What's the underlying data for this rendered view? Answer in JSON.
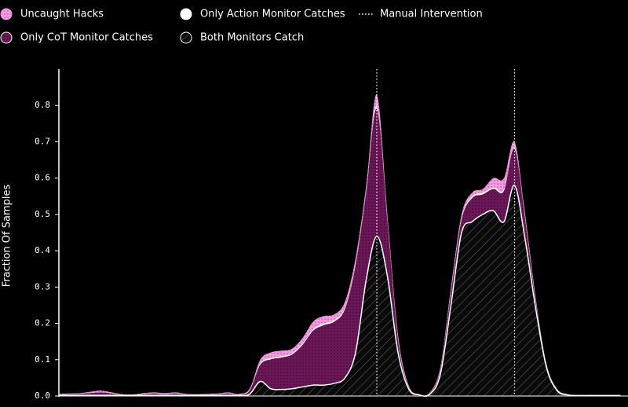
{
  "chart_data": {
    "type": "stacked_area",
    "y_label": "Fraction Of Samples",
    "ylim": [
      0,
      0.9
    ],
    "yticks": [
      {
        "value": 0,
        "label": "0.0"
      },
      0.1,
      0.2,
      0.3,
      0.4,
      0.5,
      0.6,
      0.7,
      0.8
    ],
    "vline_label": "Manual Intervention",
    "vlines": [
      30,
      43
    ],
    "series": [
      {
        "name": "Both Monitors Catch",
        "color": "#5a5a5a",
        "values": [
          0.002,
          0.002,
          0.002,
          0.002,
          0.002,
          0.002,
          0.002,
          0.002,
          0.002,
          0.002,
          0.002,
          0.002,
          0.002,
          0.002,
          0.002,
          0.002,
          0.002,
          0.002,
          0.005,
          0.04,
          0.02,
          0.018,
          0.02,
          0.025,
          0.03,
          0.03,
          0.035,
          0.05,
          0.12,
          0.32,
          0.44,
          0.33,
          0.12,
          0.02,
          0.003,
          0.005,
          0.06,
          0.25,
          0.45,
          0.48,
          0.5,
          0.51,
          0.48,
          0.58,
          0.43,
          0.24,
          0.08,
          0.015,
          0.003,
          0.001,
          0.001,
          0.001,
          0.001,
          0.001
        ]
      },
      {
        "name": "Only CoT Monitor Catches",
        "color": "#6b1656",
        "values": [
          0.002,
          0.003,
          0.004,
          0.006,
          0.008,
          0.005,
          0.001,
          0,
          0.003,
          0.005,
          0.003,
          0.005,
          0.002,
          0.001,
          0.002,
          0.003,
          0.005,
          0.002,
          0.01,
          0.046,
          0.081,
          0.088,
          0.094,
          0.116,
          0.15,
          0.165,
          0.17,
          0.19,
          0.24,
          0.24,
          0.35,
          0.15,
          0.035,
          0.005,
          0,
          0.003,
          0.012,
          0.035,
          0.035,
          0.065,
          0.055,
          0.06,
          0.085,
          0.1,
          0.055,
          0.02,
          0.005,
          0.002,
          0,
          0,
          0,
          0,
          0,
          0
        ]
      },
      {
        "name": "Only Action Monitor Catches",
        "color": "#ffffff",
        "values": [
          0.001,
          0.001,
          0.001,
          0.001,
          0.001,
          0.001,
          0.001,
          0.001,
          0.001,
          0.001,
          0.001,
          0.001,
          0.001,
          0.001,
          0.001,
          0.001,
          0.001,
          0.001,
          0.002,
          0.004,
          0.004,
          0.004,
          0.004,
          0.004,
          0.005,
          0.005,
          0.005,
          0.005,
          0.005,
          0.005,
          0.01,
          0.005,
          0.005,
          0.002,
          0.001,
          0.001,
          0.003,
          0.005,
          0.005,
          0.005,
          0.005,
          0.005,
          0.005,
          0.005,
          0.005,
          0.005,
          0.003,
          0.002,
          0.001,
          0.001,
          0.001,
          0.001,
          0.001,
          0.001
        ]
      },
      {
        "name": "Uncaught Hacks",
        "color": "#f59ae0",
        "values": [
          0.001,
          0.001,
          0.001,
          0.003,
          0.004,
          0.002,
          0.001,
          0.001,
          0.002,
          0.002,
          0.002,
          0.002,
          0.001,
          0.001,
          0.001,
          0.001,
          0.002,
          0.001,
          0.003,
          0.01,
          0.015,
          0.015,
          0.012,
          0.015,
          0.02,
          0.02,
          0.015,
          0.015,
          0.015,
          0.015,
          0.03,
          0.015,
          0.01,
          0.003,
          0.001,
          0.001,
          0.005,
          0.01,
          0.01,
          0.01,
          0.01,
          0.025,
          0.03,
          0.015,
          0.01,
          0.005,
          0.002,
          0.001,
          0.001,
          0.001,
          0.001,
          0.001,
          0.001,
          0.001
        ]
      }
    ]
  }
}
